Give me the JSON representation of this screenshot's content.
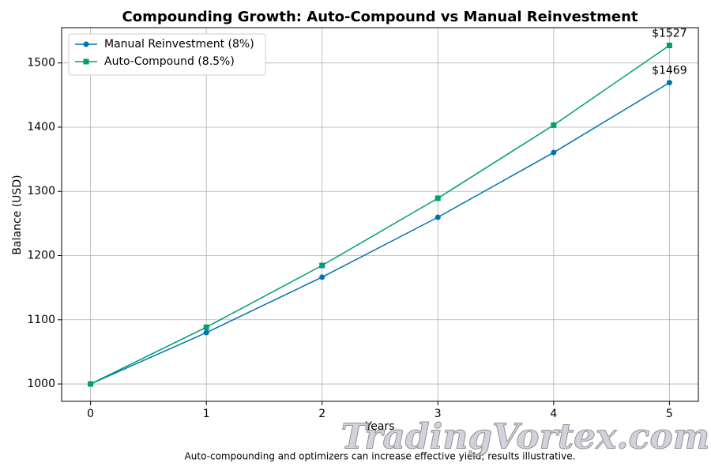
{
  "chart_data": {
    "type": "line",
    "title": "Compounding Growth: Auto-Compound vs Manual Reinvestment",
    "xlabel": "Years",
    "ylabel": "Balance (USD)",
    "x": [
      0,
      1,
      2,
      3,
      4,
      5
    ],
    "series": [
      {
        "name": "Manual Reinvestment (8%)",
        "color": "#0072b2",
        "marker": "circle",
        "values": [
          1000,
          1080,
          1166.4,
          1259.7,
          1360.5,
          1469.3
        ],
        "value_labels": [
          null,
          null,
          null,
          null,
          null,
          "$1469"
        ]
      },
      {
        "name": "Auto-Compound (8.5%)",
        "color": "#009e73",
        "marker": "square",
        "values": [
          1000,
          1088.4,
          1184.6,
          1289.3,
          1403.2,
          1527.3
        ],
        "value_labels": [
          null,
          null,
          null,
          null,
          null,
          "$1527"
        ]
      }
    ],
    "xlim": [
      -0.25,
      5.25
    ],
    "xticks": [
      0,
      1,
      2,
      3,
      4,
      5
    ],
    "ylim": [
      973,
      1555
    ],
    "yticks": [
      1000,
      1100,
      1200,
      1300,
      1400,
      1500
    ],
    "grid": true,
    "legend": "upper left",
    "footnote": "Auto-compounding and optimizers can increase effective yield; results illustrative.",
    "watermark": "TradingVortex.com"
  }
}
